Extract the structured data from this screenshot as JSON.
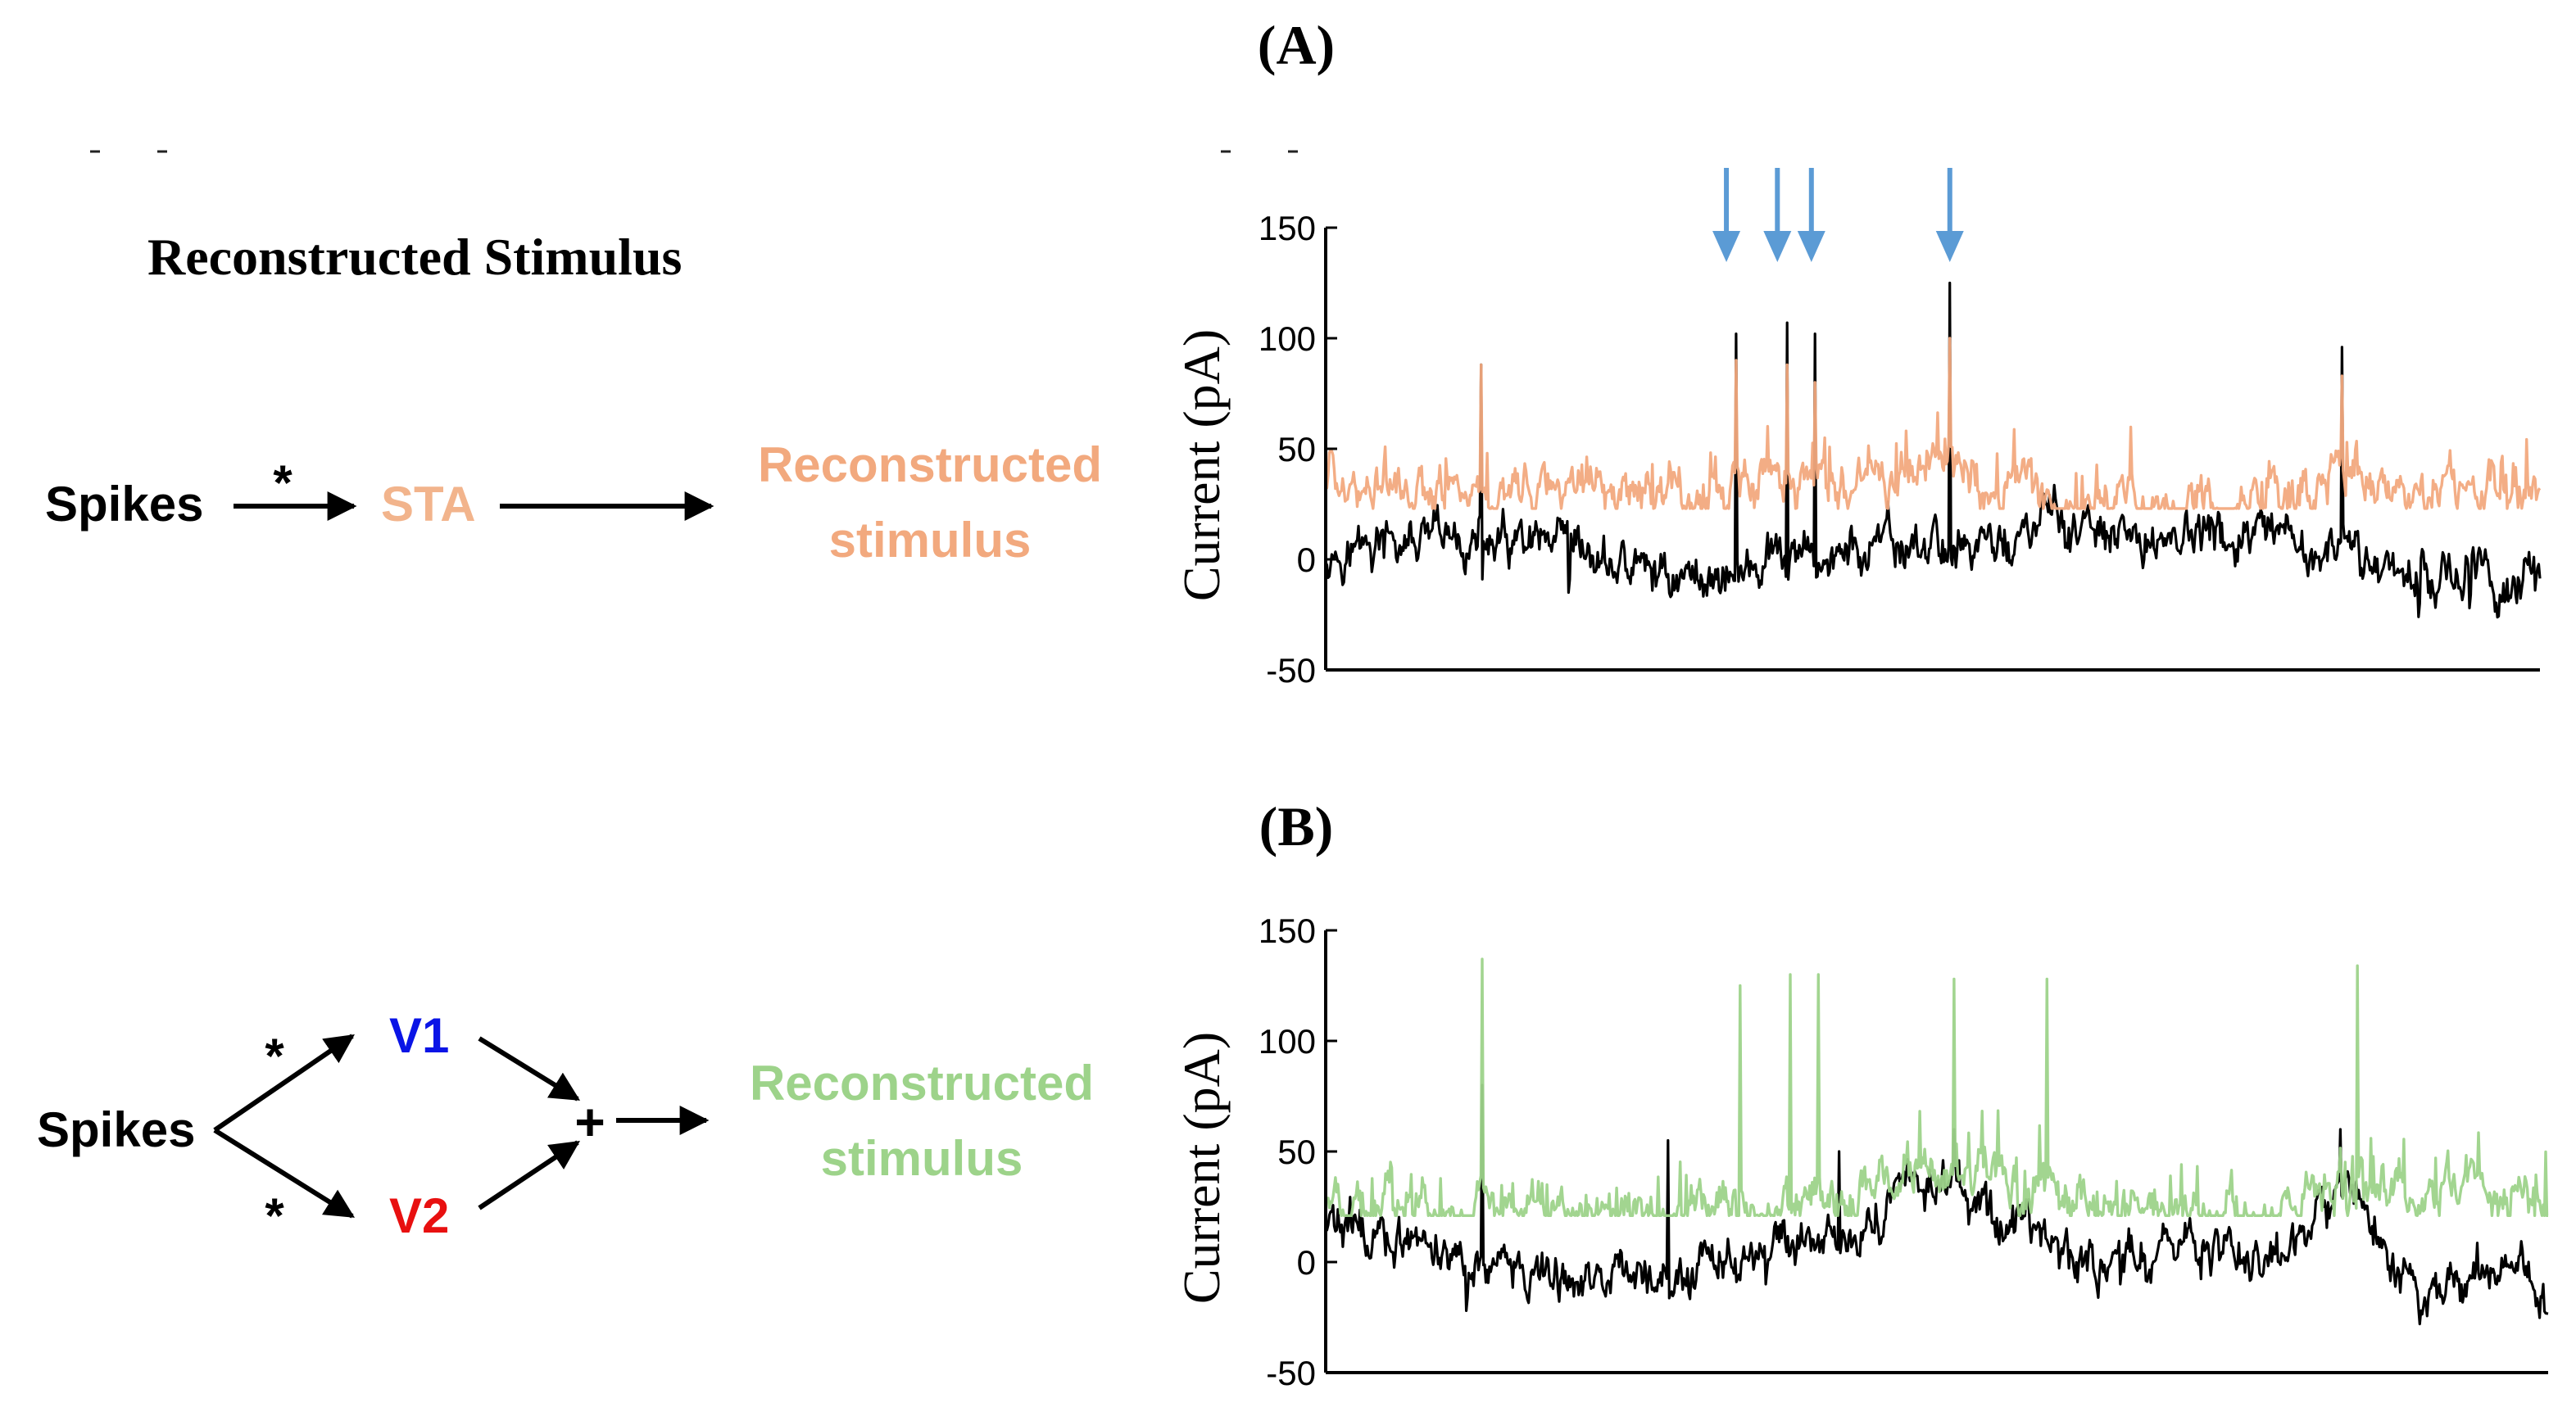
{
  "panel_labels": {
    "a": "(A)",
    "b": "(B)"
  },
  "diagram_title": "Reconstructed Stimulus",
  "diagram_a": {
    "input": "Spikes",
    "op": "*",
    "filter": "STA",
    "output_line1": "Reconstructed",
    "output_line2": "stimulus"
  },
  "diagram_b": {
    "input": "Spikes",
    "op_top": "*",
    "op_bottom": "*",
    "filter_top": "V1",
    "filter_bottom": "V2",
    "sum": "+",
    "output_line1": "Reconstructed",
    "output_line2": "stimulus"
  },
  "colors": {
    "sta": "#f2b48c",
    "recon_a": "#f2a97e",
    "recon_b": "#9dd38a",
    "v1": "#0a14e6",
    "v2": "#e81010",
    "arrow": "#5b9bd5",
    "trace": "#000000"
  },
  "chart_data": [
    {
      "type": "line",
      "panel": "A",
      "xlabel": "",
      "ylabel": "Current (pA)",
      "ylim": [
        -50,
        150
      ],
      "yticks": [
        "150",
        "100",
        "50",
        "0",
        "-50"
      ],
      "x_range": [
        0,
        1000
      ],
      "series": [
        {
          "role": "measured current",
          "color": "#000000",
          "baseline": 12,
          "noise": 13,
          "events": [
            [
              24,
              5
            ],
            [
              125,
              7
            ],
            [
              300,
              -8
            ],
            [
              465,
              5
            ],
            [
              578,
              8
            ],
            [
              590,
              20
            ],
            [
              612,
              15
            ],
            [
              658,
              5
            ],
            [
              700,
              12
            ],
            [
              1000,
              -12
            ]
          ],
          "peaks": [
            [
              128,
              88
            ],
            [
              338,
              102
            ],
            [
              380,
              107
            ],
            [
              403,
              102
            ],
            [
              514,
              125
            ],
            [
              837,
              96
            ]
          ],
          "dips": [
            [
              128,
              -15
            ],
            [
              200,
              -15
            ],
            [
              340,
              -10
            ],
            [
              900,
              -26
            ],
            [
              942,
              -22
            ],
            [
              996,
              -14
            ]
          ]
        },
        {
          "role": "reconstructed stimulus",
          "color": "#f2a97e",
          "baseline": 25,
          "noise": 14,
          "events": [
            [
              0,
              33
            ],
            [
              90,
              28
            ],
            [
              175,
              32
            ],
            [
              300,
              30
            ],
            [
              450,
              36
            ],
            [
              495,
              44
            ],
            [
              520,
              34
            ],
            [
              560,
              28
            ],
            [
              760,
              24
            ],
            [
              830,
              40
            ],
            [
              900,
              30
            ],
            [
              960,
              34
            ],
            [
              1000,
              30
            ]
          ],
          "peaks": [
            [
              128,
              88
            ],
            [
              338,
              90
            ],
            [
              380,
              88
            ],
            [
              403,
              80
            ],
            [
              514,
              100
            ],
            [
              837,
              83
            ]
          ]
        }
      ],
      "annotations": [
        {
          "type": "down-arrow",
          "x": 330
        },
        {
          "type": "down-arrow",
          "x": 372
        },
        {
          "type": "down-arrow",
          "x": 400
        },
        {
          "type": "down-arrow",
          "x": 514
        }
      ]
    },
    {
      "type": "line",
      "panel": "B",
      "xlabel": "",
      "ylabel": "Current (pA)",
      "ylim": [
        -50,
        150
      ],
      "yticks": [
        "150",
        "100",
        "50",
        "0",
        "-50"
      ],
      "x_range": [
        0,
        1000
      ],
      "series": [
        {
          "role": "measured current",
          "color": "#000000",
          "baseline": 12,
          "noise": 13,
          "events": [
            [
              0,
              18
            ],
            [
              80,
              5
            ],
            [
              200,
              -8
            ],
            [
              300,
              -5
            ],
            [
              420,
              10
            ],
            [
              500,
              38
            ],
            [
              560,
              20
            ],
            [
              620,
              -2
            ],
            [
              700,
              8
            ],
            [
              780,
              5
            ],
            [
              840,
              32
            ],
            [
              900,
              -20
            ],
            [
              940,
              0
            ],
            [
              1000,
              -12
            ]
          ],
          "peaks": [
            [
              128,
              80
            ],
            [
              280,
              55
            ],
            [
              420,
              50
            ],
            [
              514,
              60
            ],
            [
              830,
              60
            ]
          ],
          "dips": [
            [
              115,
              -22
            ],
            [
              210,
              -15
            ],
            [
              360,
              -10
            ],
            [
              650,
              -10
            ],
            [
              895,
              -28
            ],
            [
              995,
              -16
            ]
          ]
        },
        {
          "role": "reconstructed stimulus",
          "color": "#9dd38a",
          "baseline": 23,
          "noise": 13,
          "events": [
            [
              0,
              30
            ],
            [
              100,
              24
            ],
            [
              260,
              22
            ],
            [
              420,
              30
            ],
            [
              515,
              45
            ],
            [
              560,
              35
            ],
            [
              650,
              24
            ],
            [
              760,
              20
            ],
            [
              830,
              36
            ],
            [
              900,
              30
            ],
            [
              1000,
              28
            ]
          ],
          "peaks": [
            [
              128,
              137
            ],
            [
              339,
              125
            ],
            [
              380,
              130
            ],
            [
              403,
              130
            ],
            [
              514,
              128
            ],
            [
              590,
              128
            ],
            [
              844,
              134
            ]
          ]
        }
      ],
      "annotations": []
    }
  ]
}
